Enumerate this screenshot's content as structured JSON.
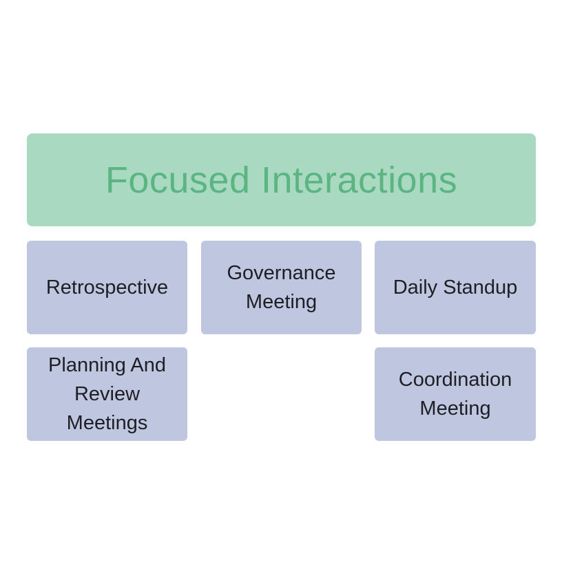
{
  "diagram": {
    "title": "Focused Interactions",
    "colors": {
      "title_box": "#aad9c1",
      "title_text": "#5bb583",
      "card_box": "#bfc6e0",
      "card_text": "#1e1e24"
    },
    "items": [
      {
        "label": "Retrospective"
      },
      {
        "label": "Governance Meeting"
      },
      {
        "label": "Daily Standup"
      },
      {
        "label": "Planning And Review Meetings"
      },
      {
        "label": "Coordination Meeting"
      }
    ]
  }
}
